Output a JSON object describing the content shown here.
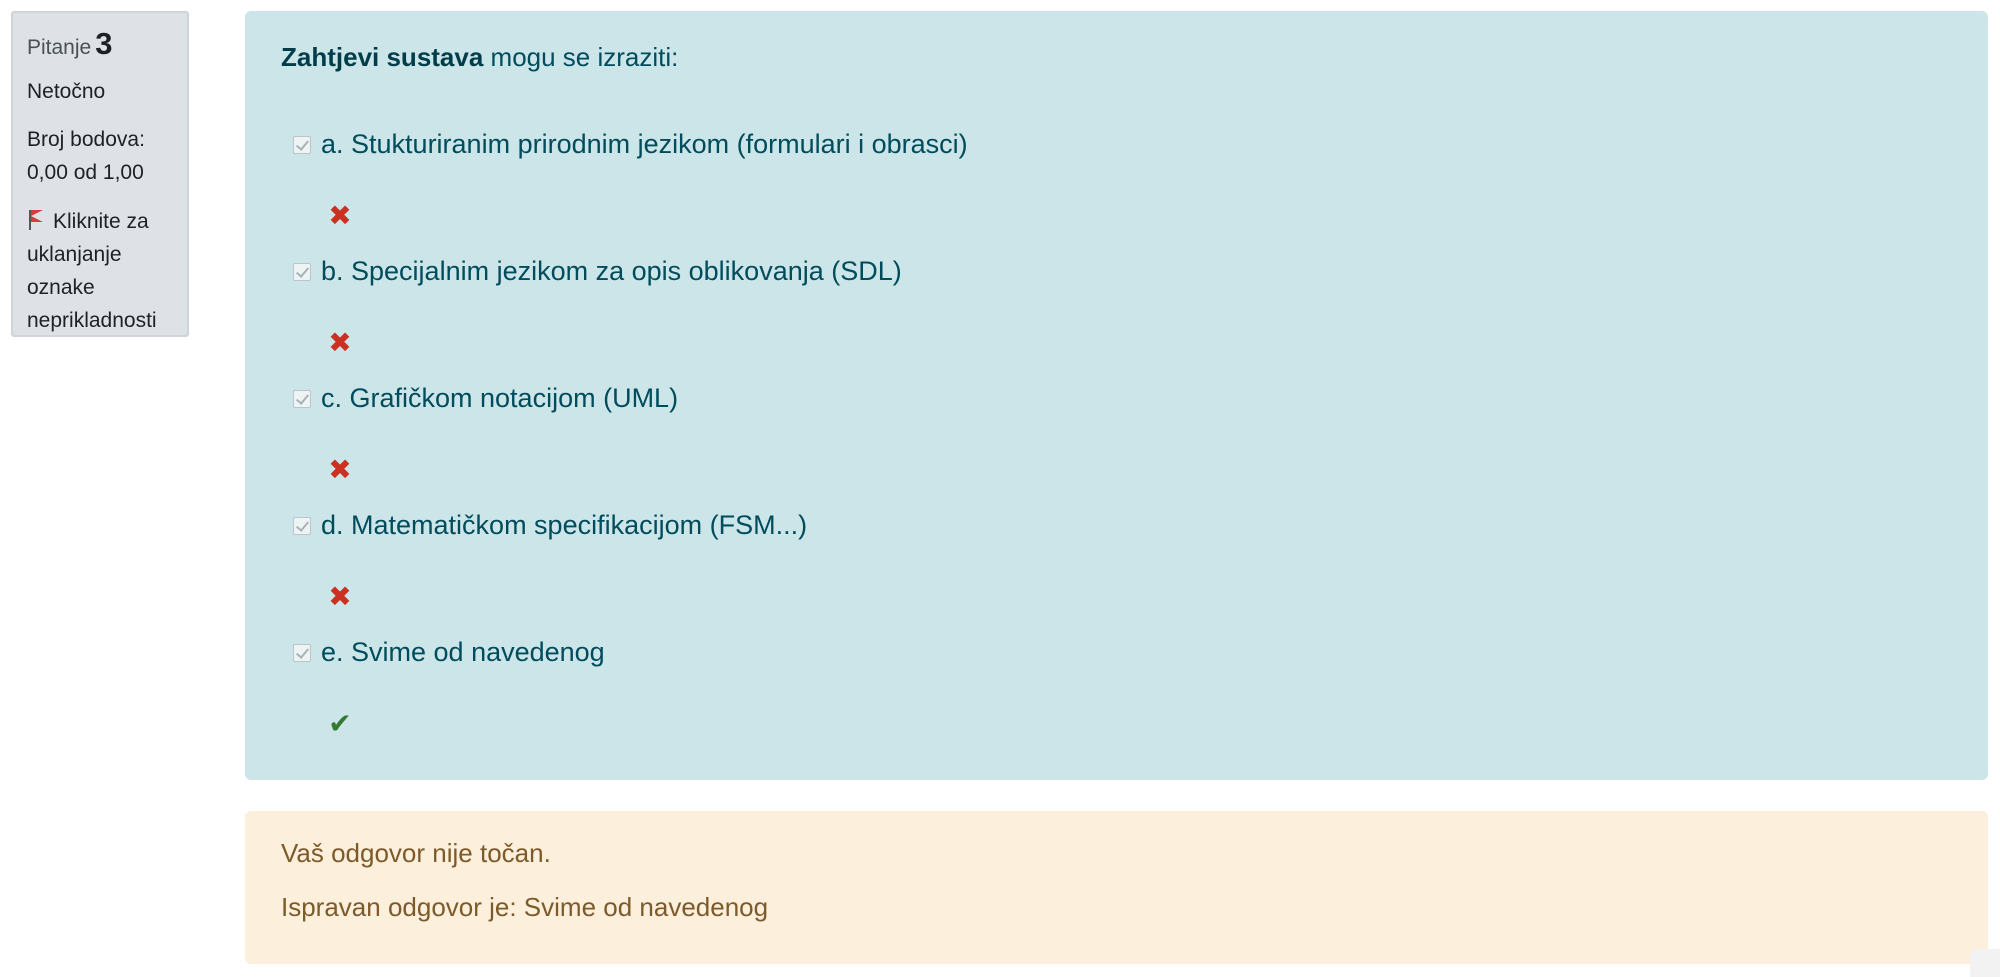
{
  "info": {
    "question_label": "Pitanje",
    "question_number": "3",
    "state": "Netočno",
    "grade_label": "Broj bodova:",
    "grade_value": "0,00 od 1,00",
    "flag_text": "Kliknite za uklanjanje oznake neprikladnosti"
  },
  "question": {
    "bold_text": "Zahtjevi sustava",
    "rest_text": " mogu se izraziti:"
  },
  "answers": [
    {
      "text": "a. Stukturiranim prirodnim jezikom (formulari i obrasci)",
      "checked": true,
      "mark": "wrong"
    },
    {
      "text": "b. Specijalnim jezikom za opis oblikovanja (SDL)",
      "checked": true,
      "mark": "wrong"
    },
    {
      "text": "c. Grafičkom notacijom (UML)",
      "checked": true,
      "mark": "wrong"
    },
    {
      "text": "d. Matematičkom specifikacijom (FSM...)",
      "checked": true,
      "mark": "wrong"
    },
    {
      "text": "e. Svime od navedenog",
      "checked": true,
      "mark": "correct"
    }
  ],
  "feedback": {
    "status": "Vaš odgovor nije točan.",
    "right_answer": "Ispravan odgovor je: Svime od navedenog"
  },
  "colors": {
    "info_bg": "#dee2e6",
    "question_bg": "#cce5e9",
    "feedback_bg": "#fcefdc",
    "wrong": "#ca3120",
    "correct": "#357a32",
    "flag": "#d63a3a"
  }
}
